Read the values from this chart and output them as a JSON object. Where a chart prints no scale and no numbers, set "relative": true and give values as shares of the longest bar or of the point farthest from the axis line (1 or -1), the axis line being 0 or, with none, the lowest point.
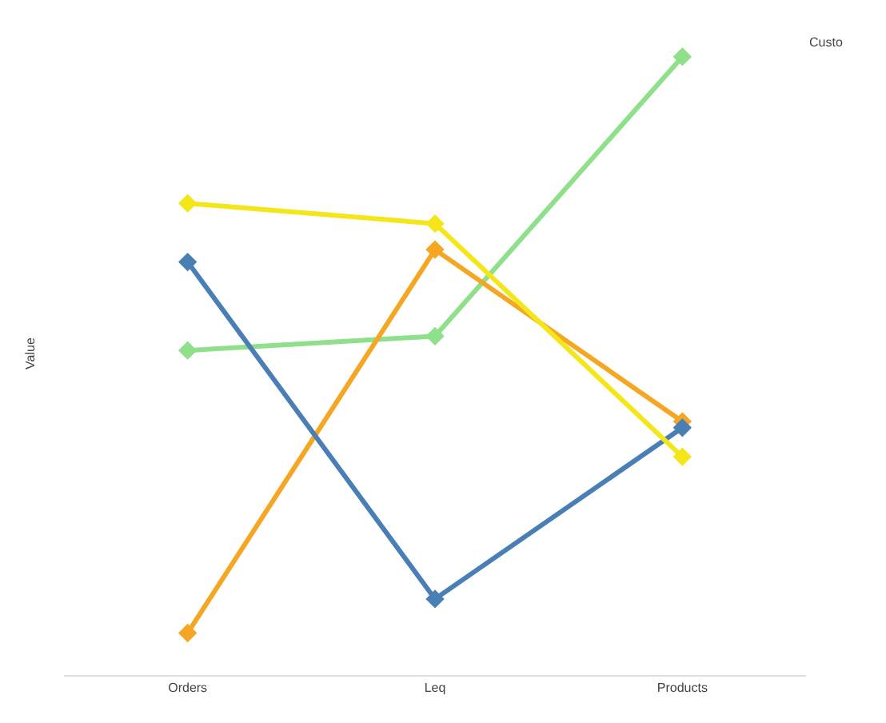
{
  "chart_data": {
    "type": "line",
    "relative": true,
    "ylabel": "Value",
    "annotations": [
      "Custo"
    ],
    "marker": "diamond",
    "line_style": "solid",
    "categories": [
      "Orders",
      "Leq",
      "Products"
    ],
    "series": [
      {
        "color": "#8fe08a",
        "values": [
          0.525,
          0.548,
          1
        ]
      },
      {
        "color": "#f5a623",
        "values": [
          0.068,
          0.688,
          0.41
        ]
      },
      {
        "color": "#4a7fb5",
        "values": [
          0.668,
          0.123,
          0.4
        ]
      },
      {
        "color": "#f5e61a",
        "values": [
          0.763,
          0.73,
          0.353
        ]
      }
    ]
  }
}
